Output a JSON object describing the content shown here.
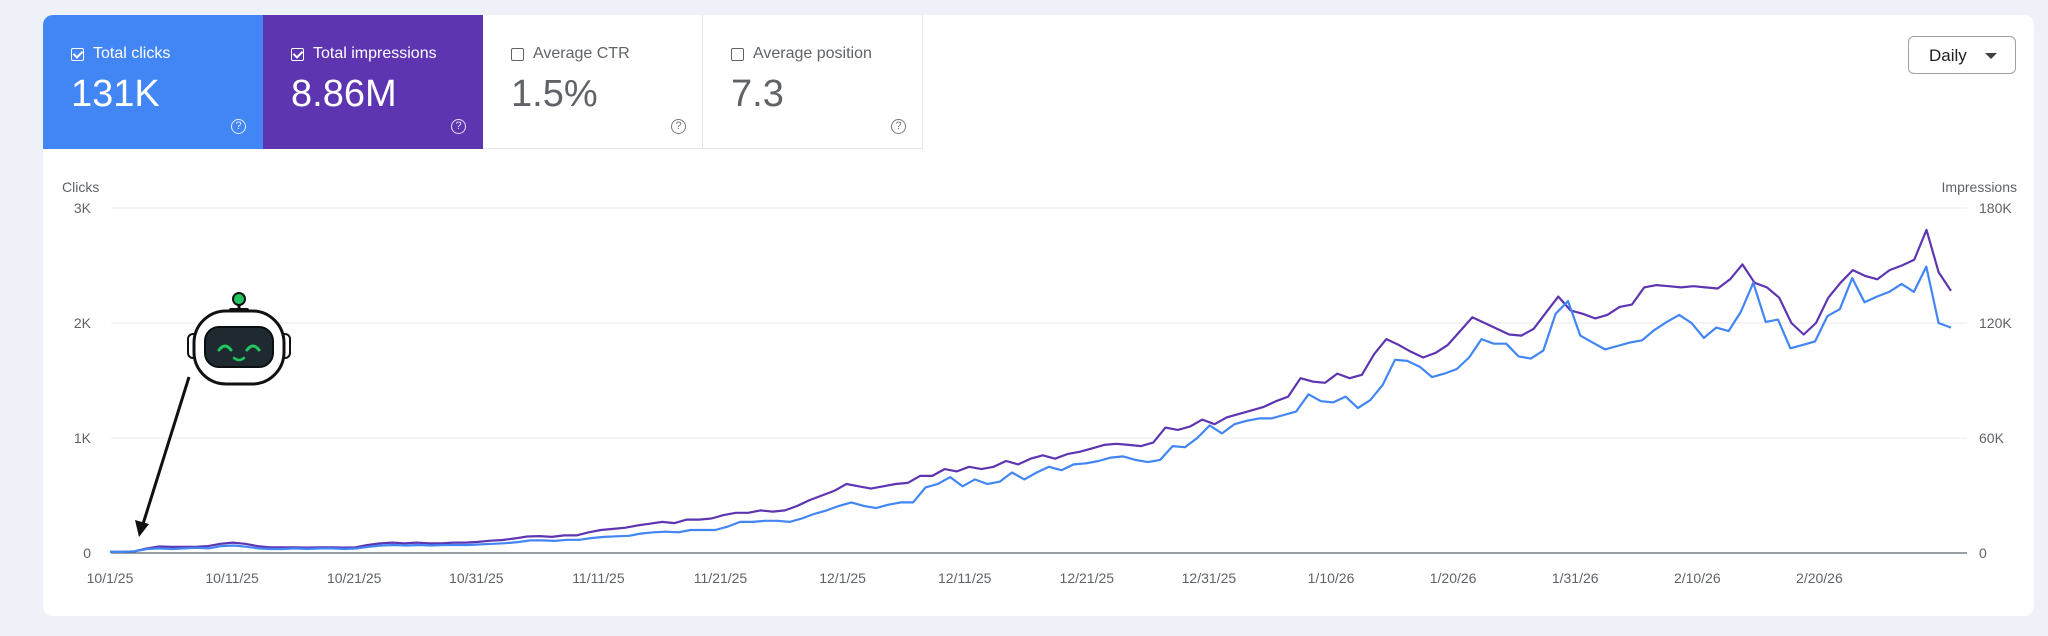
{
  "metrics": [
    {
      "label": "Total clicks",
      "value": "131K",
      "checked": true
    },
    {
      "label": "Total impressions",
      "value": "8.86M",
      "checked": true
    },
    {
      "label": "Average CTR",
      "value": "1.5%",
      "checked": false
    },
    {
      "label": "Average position",
      "value": "7.3",
      "checked": false
    }
  ],
  "help_glyph": "?",
  "granularity": {
    "label": "Daily"
  },
  "colors": {
    "clicks": "#4285f4",
    "impressions": "#5e35b1",
    "grid": "#e8eaed",
    "axis": "#5f6368",
    "arrow": "#111111",
    "robot_eyes": "#22c55e"
  },
  "icons": {
    "robot": "robot-mascot-icon",
    "arrow": "pointer-arrow-icon",
    "dropdown": "caret-down-icon"
  },
  "chart_data": {
    "type": "line",
    "y_left_label": "Clicks",
    "y_right_label": "Impressions",
    "y_left_ticks": [
      "0",
      "1K",
      "2K",
      "3K"
    ],
    "y_right_ticks": [
      "0",
      "60K",
      "120K",
      "180K"
    ],
    "y_left_range": [
      0,
      3000
    ],
    "y_right_range": [
      0,
      180000
    ],
    "x_tick_labels": [
      "10/1/25",
      "10/11/25",
      "10/21/25",
      "10/31/25",
      "11/11/25",
      "11/21/25",
      "12/1/25",
      "12/11/25",
      "12/21/25",
      "12/31/25",
      "1/10/26",
      "1/20/26",
      "1/31/26",
      "2/10/26",
      "2/20/26"
    ],
    "grid": true,
    "series": [
      {
        "name": "Clicks",
        "axis": "left",
        "values": [
          10,
          10,
          15,
          35,
          40,
          35,
          40,
          45,
          40,
          60,
          65,
          55,
          40,
          35,
          35,
          40,
          35,
          40,
          40,
          35,
          40,
          55,
          65,
          70,
          65,
          70,
          65,
          70,
          70,
          70,
          75,
          80,
          85,
          95,
          110,
          110,
          105,
          115,
          115,
          130,
          140,
          145,
          150,
          170,
          180,
          185,
          180,
          200,
          200,
          200,
          230,
          270,
          270,
          280,
          280,
          270,
          300,
          340,
          370,
          410,
          440,
          410,
          390,
          420,
          440,
          440,
          570,
          600,
          660,
          580,
          640,
          600,
          620,
          700,
          640,
          700,
          750,
          720,
          770,
          780,
          800,
          830,
          840,
          810,
          790,
          810,
          930,
          920,
          1000,
          1110,
          1040,
          1120,
          1150,
          1170,
          1170,
          1200,
          1230,
          1380,
          1320,
          1310,
          1360,
          1260,
          1330,
          1460,
          1680,
          1670,
          1620,
          1530,
          1560,
          1600,
          1700,
          1860,
          1820,
          1820,
          1710,
          1690,
          1760,
          2080,
          2190,
          1890,
          1830,
          1770,
          1800,
          1830,
          1850,
          1940,
          2010,
          2070,
          2000,
          1870,
          1960,
          1930,
          2100,
          2350,
          2010,
          2030,
          1780,
          1810,
          1840,
          2060,
          2120,
          2390,
          2180,
          2230,
          2270,
          2340,
          2270,
          2490,
          2000,
          1960
        ]
      },
      {
        "name": "Impressions",
        "axis": "right",
        "values": [
          600,
          600,
          900,
          2400,
          3400,
          3200,
          3200,
          3200,
          3600,
          4800,
          5400,
          4800,
          3600,
          3000,
          3000,
          3000,
          2800,
          3000,
          3000,
          2800,
          3000,
          4200,
          5000,
          5400,
          5000,
          5400,
          5000,
          5000,
          5400,
          5400,
          5800,
          6400,
          6800,
          7600,
          8600,
          8800,
          8400,
          9200,
          9200,
          10800,
          12000,
          12600,
          13200,
          14400,
          15300,
          16200,
          15600,
          17400,
          17400,
          18000,
          19800,
          21000,
          21000,
          22200,
          21600,
          22200,
          24600,
          27600,
          30000,
          32400,
          36000,
          34800,
          33600,
          34800,
          36000,
          36600,
          40200,
          40200,
          43800,
          42600,
          45000,
          43800,
          45000,
          48000,
          46200,
          49200,
          51000,
          49200,
          51600,
          52800,
          54600,
          56400,
          57000,
          56400,
          55800,
          57600,
          65400,
          64200,
          66000,
          69600,
          67200,
          70800,
          72600,
          74400,
          76200,
          79200,
          81600,
          91200,
          89400,
          88800,
          93600,
          91200,
          93000,
          103800,
          111600,
          108600,
          105000,
          102000,
          104400,
          108600,
          115800,
          123000,
          120000,
          117000,
          114000,
          113400,
          117000,
          125400,
          133800,
          126600,
          124800,
          122400,
          124200,
          128400,
          129600,
          138600,
          139800,
          139200,
          138600,
          139200,
          138600,
          138000,
          142800,
          150600,
          141000,
          138600,
          133200,
          120000,
          114000,
          120000,
          133200,
          141000,
          147600,
          144600,
          142800,
          147600,
          150000,
          153000,
          168600,
          146400,
          136800
        ]
      }
    ]
  }
}
